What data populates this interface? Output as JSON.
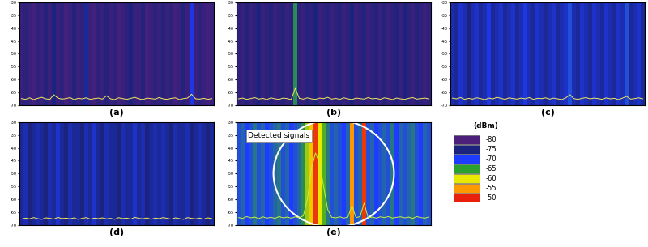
{
  "chart_data": [
    {
      "type": "waterfall",
      "xlabel": "(a)",
      "ylim": [
        -70,
        -30
      ],
      "yticks": [
        -30,
        -35,
        -40,
        -45,
        -50,
        -55,
        -60,
        -65,
        -70
      ],
      "tick_labels": "y",
      "color": "#f2e85c",
      "values": [
        -67.5,
        -67.8,
        -67.2,
        -67.9,
        -67.4,
        -67.0,
        -67.6,
        -67.8,
        -66.0,
        -67.3,
        -67.7,
        -67.5,
        -67.1,
        -67.9,
        -67.4,
        -67.6,
        -67.2,
        -67.8,
        -67.5,
        -67.3,
        -67.7,
        -66.4,
        -67.6,
        -67.9,
        -67.2,
        -67.5,
        -67.8,
        -67.4,
        -67.0,
        -67.6,
        -67.9,
        -67.3,
        -67.5,
        -67.7,
        -67.1,
        -67.6,
        -67.8,
        -67.4,
        -67.2,
        -67.9,
        -67.5,
        -67.3,
        -65.8,
        -67.6,
        -67.7,
        -67.4,
        -67.8,
        -67.5
      ],
      "waterfall": [
        -78,
        -77,
        -78,
        -79,
        -77,
        -78,
        -76,
        -78,
        -75,
        -78,
        -77,
        -79,
        -78,
        -76,
        -78,
        -77,
        -74,
        -78,
        -79,
        -77,
        -78,
        -76,
        -78,
        -77,
        -79,
        -78,
        -77,
        -75,
        -78,
        -78,
        -76,
        -79,
        -78,
        -77,
        -78,
        -76,
        -78,
        -77,
        -79,
        -78,
        -76,
        -78,
        -71,
        -78,
        -77,
        -78,
        -79,
        -78
      ]
    },
    {
      "type": "waterfall",
      "xlabel": "(b)",
      "ylim": [
        -70,
        -30
      ],
      "yticks": [
        -30,
        -35,
        -40,
        -45,
        -50,
        -55,
        -60,
        -65,
        -70
      ],
      "tick_labels": "y",
      "color": "#f2e85c",
      "values": [
        -67.6,
        -67.3,
        -67.8,
        -67.5,
        -67.1,
        -67.7,
        -67.4,
        -67.9,
        -67.2,
        -67.6,
        -67.8,
        -67.3,
        -67.5,
        -67.9,
        -63.5,
        -67.4,
        -67.7,
        -67.2,
        -67.6,
        -67.8,
        -67.3,
        -67.5,
        -67.0,
        -67.7,
        -67.4,
        -67.8,
        -67.2,
        -67.6,
        -67.9,
        -67.3,
        -67.5,
        -67.7,
        -67.1,
        -67.6,
        -67.4,
        -67.8,
        -67.2,
        -67.5,
        -67.9,
        -67.3,
        -67.6,
        -67.8,
        -67.4,
        -67.1,
        -67.7,
        -67.5,
        -67.3,
        -67.6
      ],
      "waterfall": [
        -77,
        -78,
        -76,
        -78,
        -77,
        -75,
        -78,
        -77,
        -76,
        -78,
        -77,
        -76,
        -78,
        -77,
        -66,
        -77,
        -78,
        -76,
        -77,
        -75,
        -78,
        -77,
        -76,
        -78,
        -77,
        -76,
        -78,
        -77,
        -75,
        -78,
        -77,
        -76,
        -78,
        -77,
        -76,
        -78,
        -76,
        -78,
        -77,
        -76,
        -78,
        -75,
        -77,
        -78,
        -76,
        -77,
        -78,
        -77
      ]
    },
    {
      "type": "waterfall",
      "xlabel": "(c)",
      "ylim": [
        -70,
        -30
      ],
      "yticks": [
        -30,
        -35,
        -40,
        -45,
        -50,
        -55,
        -60,
        -65,
        -70
      ],
      "tick_labels": "y",
      "color": "#f2e85c",
      "values": [
        -67.3,
        -67.6,
        -67.1,
        -67.8,
        -67.4,
        -67.7,
        -67.2,
        -67.5,
        -67.9,
        -67.3,
        -67.6,
        -67.0,
        -67.4,
        -67.8,
        -67.2,
        -67.5,
        -67.7,
        -67.3,
        -67.6,
        -67.1,
        -67.8,
        -67.4,
        -67.5,
        -67.2,
        -67.7,
        -67.3,
        -67.6,
        -67.9,
        -67.2,
        -66.0,
        -67.5,
        -67.8,
        -67.4,
        -67.1,
        -67.6,
        -67.3,
        -67.5,
        -67.8,
        -67.2,
        -67.6,
        -67.4,
        -67.9,
        -67.3,
        -66.6,
        -67.7,
        -67.5,
        -67.2,
        -67.6
      ],
      "waterfall": [
        -73,
        -74,
        -72,
        -73,
        -75,
        -73,
        -72,
        -74,
        -73,
        -71,
        -74,
        -73,
        -72,
        -74,
        -73,
        -72,
        -74,
        -73,
        -71,
        -73,
        -74,
        -72,
        -73,
        -74,
        -73,
        -72,
        -74,
        -73,
        -72,
        -69,
        -73,
        -74,
        -72,
        -73,
        -74,
        -72,
        -73,
        -74,
        -72,
        -73,
        -74,
        -72,
        -73,
        -69,
        -74,
        -73,
        -72,
        -74
      ]
    },
    {
      "type": "waterfall",
      "xlabel": "(d)",
      "ylim": [
        -70,
        -30
      ],
      "yticks": [
        -30,
        -35,
        -40,
        -45,
        -50,
        -55,
        -60,
        -65,
        -70
      ],
      "tick_labels": "y",
      "color": "#f2e85c",
      "values": [
        -67.8,
        -67.4,
        -67.7,
        -67.2,
        -67.6,
        -67.9,
        -67.3,
        -67.5,
        -67.8,
        -67.1,
        -67.6,
        -67.4,
        -67.7,
        -67.3,
        -67.9,
        -67.5,
        -67.2,
        -67.8,
        -67.4,
        -67.6,
        -67.3,
        -67.7,
        -67.5,
        -67.9,
        -67.2,
        -67.6,
        -67.4,
        -67.8,
        -67.1,
        -67.5,
        -67.7,
        -67.3,
        -67.9,
        -67.4,
        -67.6,
        -67.2,
        -67.5,
        -67.8,
        -67.3,
        -67.6,
        -67.9,
        -67.2,
        -67.5,
        -67.7,
        -67.4,
        -67.8,
        -67.3,
        -67.6
      ],
      "waterfall": [
        -74,
        -73,
        -75,
        -74,
        -73,
        -74,
        -75,
        -73,
        -74,
        -72,
        -74,
        -75,
        -73,
        -74,
        -74,
        -75,
        -73,
        -74,
        -72,
        -74,
        -75,
        -73,
        -74,
        -74,
        -75,
        -73,
        -74,
        -74,
        -72,
        -74,
        -73,
        -75,
        -74,
        -73,
        -74,
        -73,
        -74,
        -75,
        -73,
        -74,
        -74,
        -73,
        -75,
        -74,
        -73,
        -74,
        -75,
        -74
      ]
    },
    {
      "type": "waterfall",
      "xlabel": "(e)",
      "ylim": [
        -70,
        -30
      ],
      "yticks": [
        -30,
        -35,
        -40,
        -45,
        -50,
        -55,
        -60,
        -65,
        -70
      ],
      "tick_labels": "y",
      "color": "#c8f03c",
      "annotations": [
        {
          "text": "Detected signals"
        }
      ],
      "values": [
        -67.2,
        -67.5,
        -66.8,
        -67.3,
        -67.0,
        -67.6,
        -66.9,
        -67.4,
        -67.1,
        -67.5,
        -66.8,
        -67.3,
        -67.0,
        -67.4,
        -66.9,
        -67.2,
        -66.5,
        -60.0,
        -48.0,
        -42.0,
        -46.0,
        -55.0,
        -64.0,
        -67.1,
        -67.3,
        -66.9,
        -67.4,
        -67.0,
        -62.5,
        -67.2,
        -66.8,
        -61.5,
        -67.3,
        -67.0,
        -67.4,
        -66.9,
        -67.2,
        -66.8,
        -67.4,
        -67.1,
        -66.9,
        -67.3,
        -67.0,
        -67.5,
        -66.8,
        -67.2,
        -67.4,
        -67.0
      ],
      "waterfall": [
        -69,
        -68,
        -70,
        -69,
        -67,
        -69,
        -68,
        -70,
        -69,
        -68,
        -67,
        -69,
        -68,
        -70,
        -69,
        -68,
        -66,
        -62,
        -58,
        -51,
        -60,
        -64,
        -67,
        -69,
        -68,
        -69,
        -70,
        -68,
        -55,
        -69,
        -68,
        -51,
        -69,
        -68,
        -70,
        -69,
        -68,
        -69,
        -67,
        -70,
        -68,
        -69,
        -68,
        -67,
        -69,
        -70,
        -68,
        -69
      ]
    }
  ],
  "color_scale": {
    "title": "(dBm)",
    "values": [
      -80,
      -75,
      -70,
      -65,
      -60,
      -55,
      -50
    ],
    "colors": [
      "#4b1f7a",
      "#1a237e",
      "#1e3cff",
      "#2ca02c",
      "#e8e800",
      "#ff9900",
      "#e8200c"
    ]
  }
}
